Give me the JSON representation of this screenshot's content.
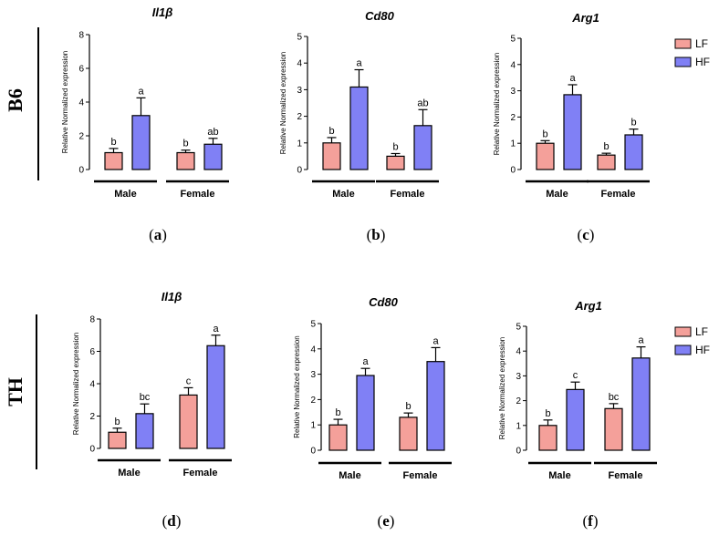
{
  "row_labels": [
    "B6",
    "TH"
  ],
  "legend": [
    {
      "name": "LF",
      "color": "#f4a09a"
    },
    {
      "name": "HF",
      "color": "#8080f5"
    }
  ],
  "chart_data": [
    {
      "type": "bar",
      "panel": "(a)",
      "row": "B6",
      "title": "Il1β",
      "ylabel": "Relative Normalized expression",
      "ylim": [
        0,
        8
      ],
      "yticks": [
        0,
        2,
        4,
        6,
        8
      ],
      "groups": [
        "Male",
        "Female"
      ],
      "series": [
        {
          "name": "LF",
          "values": [
            1.0,
            1.0
          ],
          "errors": [
            0.25,
            0.15
          ],
          "letters": [
            "b",
            "b"
          ]
        },
        {
          "name": "HF",
          "values": [
            3.2,
            1.5
          ],
          "errors": [
            1.05,
            0.35
          ],
          "letters": [
            "a",
            "ab"
          ]
        }
      ]
    },
    {
      "type": "bar",
      "panel": "(b)",
      "row": "B6",
      "title": "Cd80",
      "ylabel": "Relative Normalized expression",
      "ylim": [
        0,
        5
      ],
      "yticks": [
        0,
        1,
        2,
        3,
        4,
        5
      ],
      "groups": [
        "Male",
        "Female"
      ],
      "series": [
        {
          "name": "LF",
          "values": [
            1.0,
            0.5
          ],
          "errors": [
            0.2,
            0.1
          ],
          "letters": [
            "b",
            "b"
          ]
        },
        {
          "name": "HF",
          "values": [
            3.1,
            1.65
          ],
          "errors": [
            0.65,
            0.6
          ],
          "letters": [
            "a",
            "ab"
          ]
        }
      ]
    },
    {
      "type": "bar",
      "panel": "(c)",
      "row": "B6",
      "title": "Arg1",
      "ylabel": "Relative Normalized expression",
      "ylim": [
        0,
        5
      ],
      "yticks": [
        0,
        1,
        2,
        3,
        4,
        5
      ],
      "groups": [
        "Male",
        "Female"
      ],
      "series": [
        {
          "name": "LF",
          "values": [
            1.0,
            0.55
          ],
          "errors": [
            0.1,
            0.07
          ],
          "letters": [
            "b",
            "b"
          ]
        },
        {
          "name": "HF",
          "values": [
            2.85,
            1.32
          ],
          "errors": [
            0.38,
            0.22
          ],
          "letters": [
            "a",
            "b"
          ]
        }
      ]
    },
    {
      "type": "bar",
      "panel": "(d)",
      "row": "TH",
      "title": "Il1β",
      "ylabel": "Relative Normalized expression",
      "ylim": [
        0,
        8
      ],
      "yticks": [
        0,
        2,
        4,
        6,
        8
      ],
      "groups": [
        "Male",
        "Female"
      ],
      "series": [
        {
          "name": "LF",
          "values": [
            1.0,
            3.3
          ],
          "errors": [
            0.25,
            0.45
          ],
          "letters": [
            "b",
            "c"
          ]
        },
        {
          "name": "HF",
          "values": [
            2.15,
            6.35
          ],
          "errors": [
            0.6,
            0.65
          ],
          "letters": [
            "bc",
            "a"
          ]
        }
      ]
    },
    {
      "type": "bar",
      "panel": "(e)",
      "row": "TH",
      "title": "Cd80",
      "ylabel": "Relative Normalized expression",
      "ylim": [
        0,
        5
      ],
      "yticks": [
        0,
        1,
        2,
        3,
        4,
        5
      ],
      "groups": [
        "Male",
        "Female"
      ],
      "series": [
        {
          "name": "LF",
          "values": [
            1.0,
            1.3
          ],
          "errors": [
            0.22,
            0.17
          ],
          "letters": [
            "b",
            "b"
          ]
        },
        {
          "name": "HF",
          "values": [
            2.95,
            3.5
          ],
          "errors": [
            0.28,
            0.55
          ],
          "letters": [
            "a",
            "a"
          ]
        }
      ]
    },
    {
      "type": "bar",
      "panel": "(f)",
      "row": "TH",
      "title": "Arg1",
      "ylabel": "Relative Normalized expression",
      "ylim": [
        0,
        5
      ],
      "yticks": [
        0,
        1,
        2,
        3,
        4,
        5
      ],
      "groups": [
        "Male",
        "Female"
      ],
      "series": [
        {
          "name": "LF",
          "values": [
            1.0,
            1.68
          ],
          "errors": [
            0.22,
            0.2
          ],
          "letters": [
            "b",
            "bc"
          ]
        },
        {
          "name": "HF",
          "values": [
            2.45,
            3.72
          ],
          "errors": [
            0.3,
            0.45
          ],
          "letters": [
            "c",
            "a"
          ]
        }
      ]
    }
  ]
}
